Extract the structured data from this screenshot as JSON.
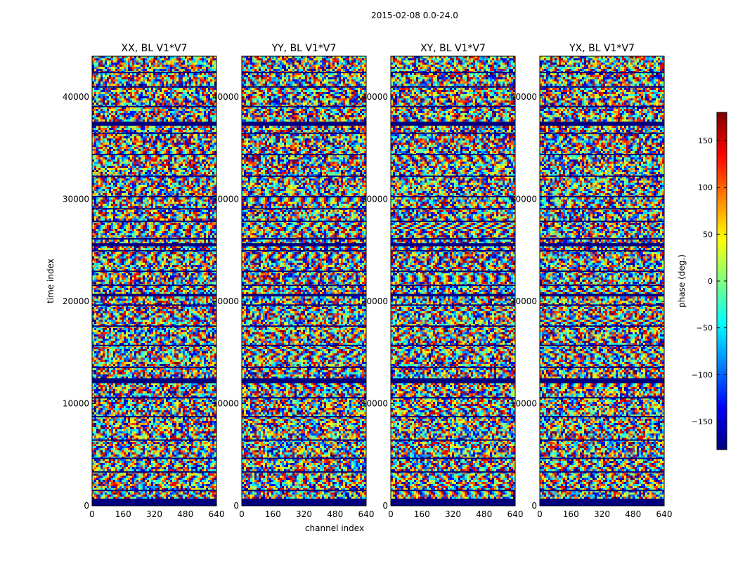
{
  "chart_data": {
    "type": "heatmap",
    "suptitle": "2015-02-08 0.0-24.0",
    "xlabel": "channel index",
    "ylabel": "time index",
    "xlim": [
      0,
      640
    ],
    "ylim": [
      0,
      44000
    ],
    "xticks": [
      0,
      160,
      320,
      480,
      640
    ],
    "yticks": [
      0,
      10000,
      20000,
      30000,
      40000
    ],
    "panels": [
      {
        "title": "XX, BL V1*V7"
      },
      {
        "title": "YY, BL V1*V7"
      },
      {
        "title": "XY, BL V1*V7"
      },
      {
        "title": "YX, BL V1*V7"
      }
    ],
    "colorbar": {
      "label": "phase (deg.)",
      "range": [
        -180,
        180
      ],
      "ticks": [
        150,
        100,
        50,
        0,
        -50,
        -100,
        -150
      ],
      "tick_labels": [
        "150",
        "100",
        "50",
        "0",
        "−50",
        "−100",
        "−150"
      ],
      "colormap": "jet",
      "colors": [
        "#00007f",
        "#0000ff",
        "#007fff",
        "#00ffff",
        "#7fff7f",
        "#ffff00",
        "#ff7f00",
        "#ff0000",
        "#7f0000"
      ]
    },
    "flag_color": "#00007f"
  }
}
